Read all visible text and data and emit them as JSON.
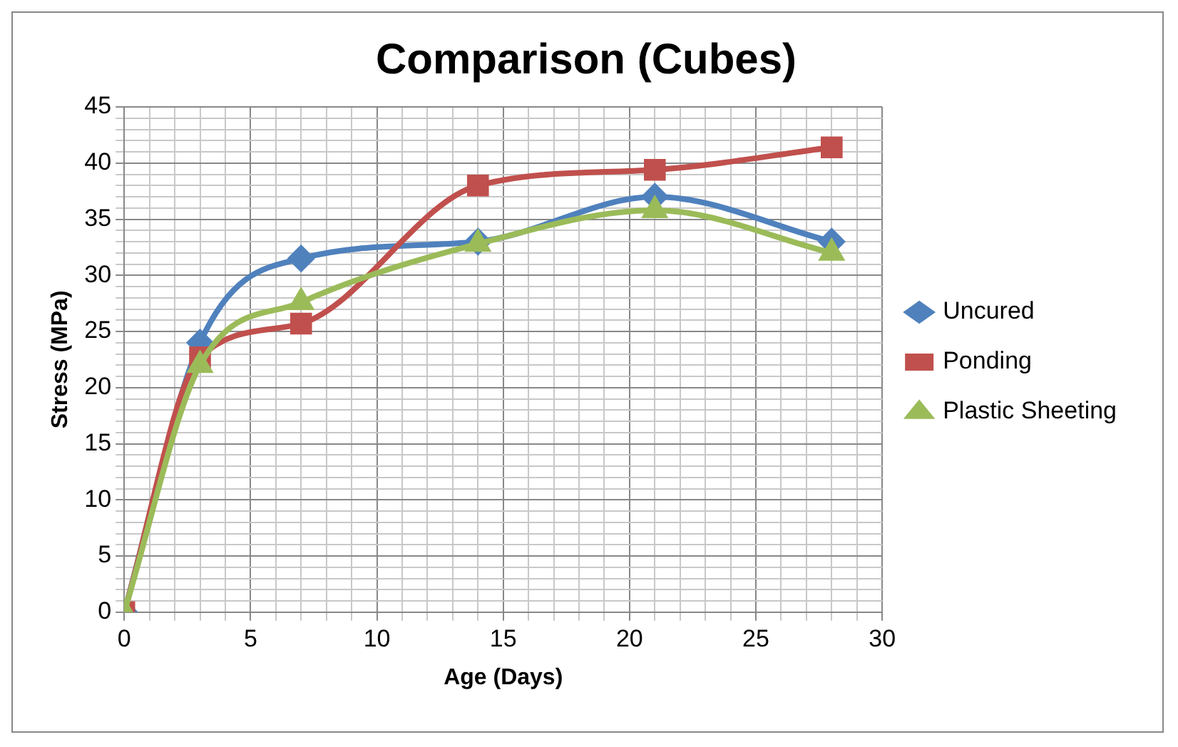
{
  "chart_data": {
    "type": "line",
    "title": "Comparison (Cubes)",
    "xlabel": "Age (Days)",
    "ylabel": "Stress (MPa)",
    "xlim": [
      0,
      30
    ],
    "ylim": [
      0,
      45
    ],
    "xticks": [
      0,
      {
        "value": 1,
        "label": null
      },
      {
        "value": 2,
        "label": null
      },
      {
        "value": 3,
        "label": null
      },
      {
        "value": 4,
        "label": null
      },
      5,
      {
        "value": 6,
        "label": null
      },
      {
        "value": 7,
        "label": null
      },
      {
        "value": 8,
        "label": null
      },
      {
        "value": 9,
        "label": null
      },
      10,
      {
        "value": 11,
        "label": null
      },
      {
        "value": 12,
        "label": null
      },
      {
        "value": 13,
        "label": null
      },
      {
        "value": 14,
        "label": null
      },
      15,
      {
        "value": 16,
        "label": null
      },
      {
        "value": 17,
        "label": null
      },
      {
        "value": 18,
        "label": null
      },
      {
        "value": 19,
        "label": null
      },
      20,
      {
        "value": 21,
        "label": null
      },
      {
        "value": 22,
        "label": null
      },
      {
        "value": 23,
        "label": null
      },
      {
        "value": 24,
        "label": null
      },
      25,
      {
        "value": 26,
        "label": null
      },
      {
        "value": 27,
        "label": null
      },
      {
        "value": 28,
        "label": null
      },
      {
        "value": 29,
        "label": null
      },
      30
    ],
    "yticks": [
      0,
      {
        "value": 1,
        "label": null
      },
      {
        "value": 2,
        "label": null
      },
      {
        "value": 3,
        "label": null
      },
      {
        "value": 4,
        "label": null
      },
      5,
      {
        "value": 6,
        "label": null
      },
      {
        "value": 7,
        "label": null
      },
      {
        "value": 8,
        "label": null
      },
      {
        "value": 9,
        "label": null
      },
      10,
      {
        "value": 11,
        "label": null
      },
      {
        "value": 12,
        "label": null
      },
      {
        "value": 13,
        "label": null
      },
      {
        "value": 14,
        "label": null
      },
      15,
      {
        "value": 16,
        "label": null
      },
      {
        "value": 17,
        "label": null
      },
      {
        "value": 18,
        "label": null
      },
      {
        "value": 19,
        "label": null
      },
      20,
      {
        "value": 21,
        "label": null
      },
      {
        "value": 22,
        "label": null
      },
      {
        "value": 23,
        "label": null
      },
      {
        "value": 24,
        "label": null
      },
      25,
      {
        "value": 26,
        "label": null
      },
      {
        "value": 27,
        "label": null
      },
      {
        "value": 28,
        "label": null
      },
      {
        "value": 29,
        "label": null
      },
      30,
      {
        "value": 31,
        "label": null
      },
      {
        "value": 32,
        "label": null
      },
      {
        "value": 33,
        "label": null
      },
      {
        "value": 34,
        "label": null
      },
      35,
      {
        "value": 36,
        "label": null
      },
      {
        "value": 37,
        "label": null
      },
      {
        "value": 38,
        "label": null
      },
      {
        "value": 39,
        "label": null
      },
      40,
      {
        "value": 41,
        "label": null
      },
      {
        "value": 42,
        "label": null
      },
      {
        "value": 43,
        "label": null
      },
      {
        "value": 44,
        "label": null
      },
      45
    ],
    "grid": true,
    "legend": "right",
    "line_style": "solid",
    "x": [
      0,
      3,
      7,
      14,
      21,
      28
    ],
    "series": [
      {
        "name": "Uncured",
        "color": "#4f81bd",
        "marker": "diamond",
        "values": [
          0,
          24,
          31.5,
          33,
          37,
          33
        ]
      },
      {
        "name": "Ponding",
        "color": "#c0504d",
        "marker": "square",
        "values": [
          0,
          22.7,
          25.7,
          38,
          39.4,
          41.4
        ]
      },
      {
        "name": "Plastic Sheeting",
        "color": "#9bbb59",
        "marker": "triangle",
        "values": [
          0,
          22,
          27.6,
          32.8,
          35.8,
          32
        ]
      }
    ]
  }
}
